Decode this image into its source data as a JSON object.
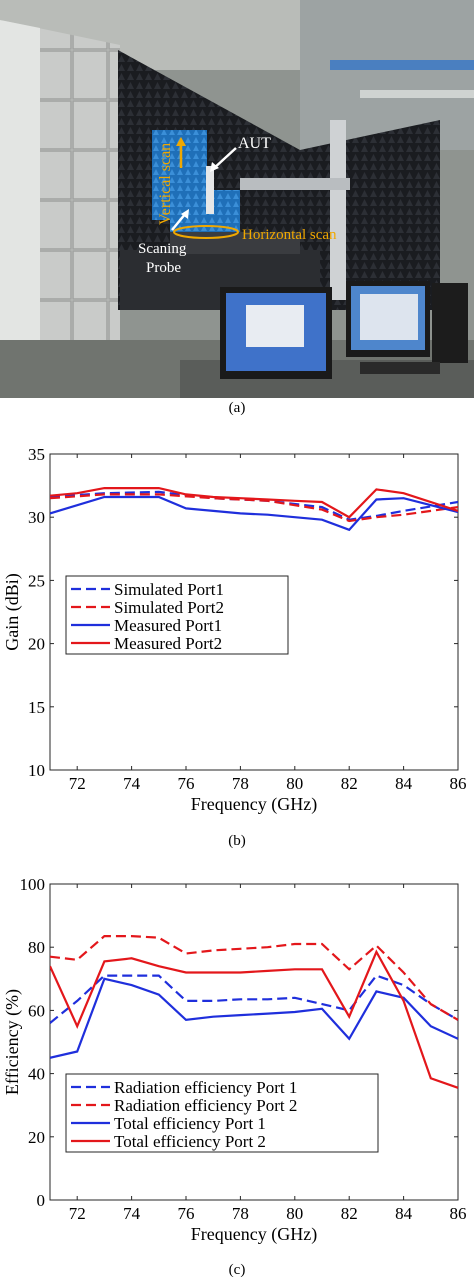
{
  "photo": {
    "labels": {
      "aut": "AUT",
      "vertical_scan": "Vertical scan",
      "horizontal_scan": "Horizontal scan",
      "probe_line1": "Scaning",
      "probe_line2": "Probe"
    },
    "colors": {
      "annotation": "#f0a800",
      "arrow": "#ffffff"
    }
  },
  "captions": {
    "a": "(a)",
    "b": "(b)",
    "c": "(c)"
  },
  "chart_data": [
    {
      "type": "line",
      "xlabel": "Frequency (GHz)",
      "ylabel": "Gain (dBi)",
      "xlim": [
        71,
        86
      ],
      "ylim": [
        10,
        35
      ],
      "xticks": [
        72,
        74,
        76,
        78,
        80,
        82,
        84,
        86
      ],
      "yticks": [
        10,
        15,
        20,
        25,
        30,
        35
      ],
      "grid": false,
      "legend_position": "center-left",
      "series": [
        {
          "name": "Simulated Port1",
          "color": "#1f2fdc",
          "dash": true,
          "x": [
            71,
            73,
            75,
            77,
            79,
            81,
            82,
            83,
            84,
            86
          ],
          "y": [
            31.6,
            31.9,
            32.0,
            31.5,
            31.3,
            30.8,
            29.8,
            30.1,
            30.5,
            31.2
          ]
        },
        {
          "name": "Simulated Port2",
          "color": "#e3171b",
          "dash": true,
          "x": [
            71,
            73,
            75,
            77,
            79,
            81,
            82,
            83,
            84,
            86
          ],
          "y": [
            31.5,
            31.8,
            31.8,
            31.5,
            31.3,
            30.6,
            29.7,
            30.0,
            30.2,
            30.8
          ]
        },
        {
          "name": "Measured Port1",
          "color": "#1f2fdc",
          "dash": false,
          "x": [
            71,
            73,
            75,
            76,
            77,
            78,
            79,
            80,
            81,
            82,
            83,
            84,
            86
          ],
          "y": [
            30.3,
            31.6,
            31.6,
            30.7,
            30.5,
            30.3,
            30.2,
            30.0,
            29.8,
            29.0,
            31.4,
            31.5,
            30.4
          ]
        },
        {
          "name": "Measured Port2",
          "color": "#e3171b",
          "dash": false,
          "x": [
            71,
            72,
            73,
            74,
            75,
            76,
            77,
            78,
            79,
            80,
            81,
            82,
            83,
            84,
            86
          ],
          "y": [
            31.7,
            31.9,
            32.3,
            32.3,
            32.3,
            31.8,
            31.6,
            31.5,
            31.4,
            31.3,
            31.2,
            30.0,
            32.2,
            31.9,
            30.5
          ]
        }
      ]
    },
    {
      "type": "line",
      "xlabel": "Frequency (GHz)",
      "ylabel": "Efficiency (%)",
      "xlim": [
        71,
        86
      ],
      "ylim": [
        0,
        100
      ],
      "xticks": [
        72,
        74,
        76,
        78,
        80,
        82,
        84,
        86
      ],
      "yticks": [
        0,
        20,
        40,
        60,
        80,
        100
      ],
      "grid": false,
      "legend_position": "bottom-left",
      "series": [
        {
          "name": "Radiation efficiency Port 1",
          "color": "#1f2fdc",
          "dash": true,
          "x": [
            71,
            72,
            73,
            74,
            75,
            76,
            77,
            78,
            79,
            80,
            81,
            82,
            83,
            84,
            85,
            86
          ],
          "y": [
            56,
            63,
            71,
            71,
            71,
            63,
            63,
            63.5,
            63.5,
            64,
            62,
            60,
            71,
            68,
            62,
            57
          ]
        },
        {
          "name": "Radiation efficiency Port 2",
          "color": "#e3171b",
          "dash": true,
          "x": [
            71,
            72,
            73,
            74,
            75,
            76,
            77,
            78,
            79,
            80,
            81,
            82,
            83,
            84,
            85,
            86
          ],
          "y": [
            77,
            76,
            83.5,
            83.5,
            83,
            78,
            79,
            79.5,
            80,
            81,
            81,
            73,
            80.5,
            72,
            62,
            57
          ]
        },
        {
          "name": "Total efficiency Port 1",
          "color": "#1f2fdc",
          "dash": false,
          "x": [
            71,
            72,
            73,
            74,
            75,
            76,
            77,
            78,
            79,
            80,
            81,
            82,
            83,
            84,
            85,
            86
          ],
          "y": [
            45,
            47,
            70,
            68,
            65,
            57,
            58,
            58.5,
            59,
            59.5,
            60.5,
            51,
            66,
            64,
            55,
            51
          ]
        },
        {
          "name": "Total efficiency Port 2",
          "color": "#e3171b",
          "dash": false,
          "x": [
            71,
            72,
            73,
            74,
            75,
            76,
            77,
            78,
            79,
            80,
            81,
            82,
            83,
            84,
            85,
            86
          ],
          "y": [
            74,
            55,
            75.5,
            76.5,
            74,
            72,
            72,
            72,
            72.5,
            73,
            73,
            58,
            78.5,
            63,
            38.5,
            35.5
          ]
        }
      ]
    }
  ]
}
